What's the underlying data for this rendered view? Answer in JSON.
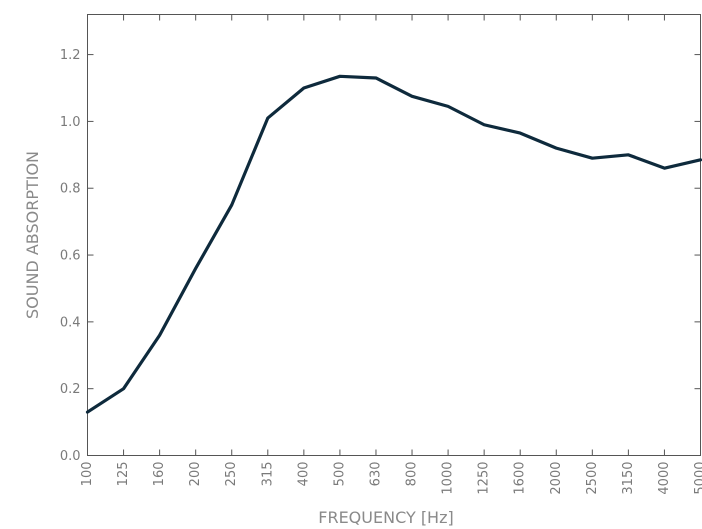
{
  "chart_data": {
    "type": "line",
    "xlabel": "FREQUENCY [Hz]",
    "ylabel": "SOUND ABSORPTION",
    "categories": [
      "100",
      "125",
      "160",
      "200",
      "250",
      "315",
      "400",
      "500",
      "630",
      "800",
      "1000",
      "1250",
      "1600",
      "2000",
      "2500",
      "3150",
      "4000",
      "5000"
    ],
    "series": [
      {
        "values": [
          0.13,
          0.2,
          0.36,
          0.56,
          0.75,
          1.01,
          1.1,
          1.135,
          1.13,
          1.075,
          1.045,
          0.99,
          0.965,
          0.92,
          0.89,
          0.9,
          0.86,
          0.885
        ],
        "color": "#0e2a3c"
      }
    ],
    "yticks": [
      "0.0",
      "0.2",
      "0.4",
      "0.6",
      "0.8",
      "1.0",
      "1.2"
    ],
    "ylim": [
      0,
      1.32
    ],
    "grid": false
  }
}
